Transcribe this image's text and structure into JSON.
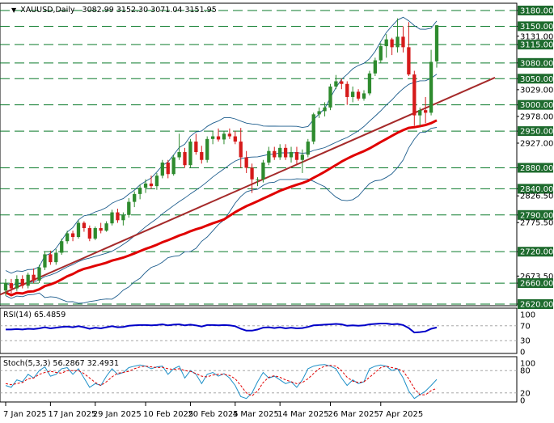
{
  "chart_data": [
    {
      "type": "candlestick",
      "symbol": "XAUUSD,Daily",
      "ohlc_header": "3082.99 3152.30 3071.04 3151.95",
      "header_arrow": "▼",
      "price_axis_ticks": [
        "3180.00",
        "3150.00",
        "3131.00",
        "3115.00",
        "3080.00",
        "3050.00",
        "3029.00",
        "3000.00",
        "2978.00",
        "2950.00",
        "2927.00",
        "2880.00",
        "2840.00",
        "2826.50",
        "2790.00",
        "2775.50",
        "2720.00",
        "2673.50",
        "2660.00",
        "2620.00"
      ],
      "highlighted_levels": [
        "3180.00",
        "3150.00",
        "3115.00",
        "3080.00",
        "3050.00",
        "3000.00",
        "2950.00",
        "2880.00",
        "2840.00",
        "2790.00",
        "2720.00",
        "2660.00",
        "2620.00"
      ],
      "ylim": [
        2620,
        3180
      ],
      "x_tick_labels": [
        "7 Jan 2025",
        "17 Jan 2025",
        "29 Jan 2025",
        "10 Feb 2025",
        "20 Feb 2025",
        "4 Mar 2025",
        "14 Mar 2025",
        "26 Mar 2025",
        "7 Apr 2025"
      ],
      "candles": [
        {
          "o": 2646,
          "h": 2668,
          "l": 2636,
          "c": 2660
        },
        {
          "o": 2660,
          "h": 2668,
          "l": 2640,
          "c": 2650
        },
        {
          "o": 2650,
          "h": 2675,
          "l": 2645,
          "c": 2668
        },
        {
          "o": 2668,
          "h": 2675,
          "l": 2650,
          "c": 2655
        },
        {
          "o": 2655,
          "h": 2680,
          "l": 2650,
          "c": 2676
        },
        {
          "o": 2676,
          "h": 2688,
          "l": 2660,
          "c": 2665
        },
        {
          "o": 2665,
          "h": 2695,
          "l": 2660,
          "c": 2690
        },
        {
          "o": 2690,
          "h": 2720,
          "l": 2685,
          "c": 2715
        },
        {
          "o": 2715,
          "h": 2722,
          "l": 2695,
          "c": 2700
        },
        {
          "o": 2700,
          "h": 2725,
          "l": 2695,
          "c": 2718
        },
        {
          "o": 2718,
          "h": 2745,
          "l": 2714,
          "c": 2740
        },
        {
          "o": 2740,
          "h": 2760,
          "l": 2735,
          "c": 2755
        },
        {
          "o": 2755,
          "h": 2760,
          "l": 2740,
          "c": 2748
        },
        {
          "o": 2748,
          "h": 2780,
          "l": 2745,
          "c": 2775
        },
        {
          "o": 2775,
          "h": 2778,
          "l": 2758,
          "c": 2765
        },
        {
          "o": 2765,
          "h": 2770,
          "l": 2740,
          "c": 2745
        },
        {
          "o": 2745,
          "h": 2768,
          "l": 2742,
          "c": 2765
        },
        {
          "o": 2765,
          "h": 2775,
          "l": 2755,
          "c": 2760
        },
        {
          "o": 2760,
          "h": 2778,
          "l": 2758,
          "c": 2774
        },
        {
          "o": 2774,
          "h": 2800,
          "l": 2770,
          "c": 2795
        },
        {
          "o": 2795,
          "h": 2802,
          "l": 2775,
          "c": 2780
        },
        {
          "o": 2780,
          "h": 2795,
          "l": 2770,
          "c": 2790
        },
        {
          "o": 2790,
          "h": 2822,
          "l": 2785,
          "c": 2815
        },
        {
          "o": 2815,
          "h": 2835,
          "l": 2805,
          "c": 2830
        },
        {
          "o": 2830,
          "h": 2848,
          "l": 2820,
          "c": 2842
        },
        {
          "o": 2842,
          "h": 2858,
          "l": 2832,
          "c": 2850
        },
        {
          "o": 2850,
          "h": 2865,
          "l": 2840,
          "c": 2845
        },
        {
          "o": 2845,
          "h": 2870,
          "l": 2838,
          "c": 2865
        },
        {
          "o": 2865,
          "h": 2895,
          "l": 2860,
          "c": 2890
        },
        {
          "o": 2890,
          "h": 2895,
          "l": 2860,
          "c": 2868
        },
        {
          "o": 2868,
          "h": 2905,
          "l": 2865,
          "c": 2900
        },
        {
          "o": 2900,
          "h": 2945,
          "l": 2895,
          "c": 2910
        },
        {
          "o": 2910,
          "h": 2918,
          "l": 2880,
          "c": 2885
        },
        {
          "o": 2885,
          "h": 2935,
          "l": 2880,
          "c": 2930
        },
        {
          "o": 2930,
          "h": 2945,
          "l": 2905,
          "c": 2910
        },
        {
          "o": 2910,
          "h": 2922,
          "l": 2888,
          "c": 2895
        },
        {
          "o": 2895,
          "h": 2940,
          "l": 2890,
          "c": 2935
        },
        {
          "o": 2935,
          "h": 2950,
          "l": 2925,
          "c": 2940
        },
        {
          "o": 2940,
          "h": 2955,
          "l": 2930,
          "c": 2934
        },
        {
          "o": 2934,
          "h": 2950,
          "l": 2925,
          "c": 2945
        },
        {
          "o": 2945,
          "h": 2955,
          "l": 2935,
          "c": 2940
        },
        {
          "o": 2940,
          "h": 2950,
          "l": 2925,
          "c": 2930
        },
        {
          "o": 2930,
          "h": 2956,
          "l": 2880,
          "c": 2900
        },
        {
          "o": 2900,
          "h": 2912,
          "l": 2870,
          "c": 2880
        },
        {
          "o": 2880,
          "h": 2888,
          "l": 2832,
          "c": 2858
        },
        {
          "o": 2858,
          "h": 2862,
          "l": 2845,
          "c": 2858
        },
        {
          "o": 2858,
          "h": 2895,
          "l": 2852,
          "c": 2890
        },
        {
          "o": 2890,
          "h": 2920,
          "l": 2885,
          "c": 2912
        },
        {
          "o": 2912,
          "h": 2920,
          "l": 2895,
          "c": 2900
        },
        {
          "o": 2900,
          "h": 2925,
          "l": 2895,
          "c": 2918
        },
        {
          "o": 2918,
          "h": 2925,
          "l": 2895,
          "c": 2900
        },
        {
          "o": 2900,
          "h": 2920,
          "l": 2890,
          "c": 2910
        },
        {
          "o": 2910,
          "h": 2920,
          "l": 2885,
          "c": 2895
        },
        {
          "o": 2895,
          "h": 2915,
          "l": 2870,
          "c": 2905
        },
        {
          "o": 2905,
          "h": 2935,
          "l": 2900,
          "c": 2930
        },
        {
          "o": 2930,
          "h": 2985,
          "l": 2925,
          "c": 2982
        },
        {
          "o": 2982,
          "h": 2995,
          "l": 2975,
          "c": 2988
        },
        {
          "o": 2988,
          "h": 3005,
          "l": 2978,
          "c": 2995
        },
        {
          "o": 2995,
          "h": 3040,
          "l": 2990,
          "c": 3035
        },
        {
          "o": 3035,
          "h": 3057,
          "l": 3030,
          "c": 3045
        },
        {
          "o": 3045,
          "h": 3050,
          "l": 3030,
          "c": 3040
        },
        {
          "o": 3040,
          "h": 3045,
          "l": 3000,
          "c": 3015
        },
        {
          "o": 3015,
          "h": 3035,
          "l": 3005,
          "c": 3025
        },
        {
          "o": 3025,
          "h": 3030,
          "l": 3008,
          "c": 3012
        },
        {
          "o": 3012,
          "h": 3028,
          "l": 3008,
          "c": 3022
        },
        {
          "o": 3022,
          "h": 3065,
          "l": 3018,
          "c": 3060
        },
        {
          "o": 3060,
          "h": 3090,
          "l": 3055,
          "c": 3085
        },
        {
          "o": 3085,
          "h": 3118,
          "l": 3080,
          "c": 3112
        },
        {
          "o": 3112,
          "h": 3135,
          "l": 3090,
          "c": 3125
        },
        {
          "o": 3125,
          "h": 3128,
          "l": 3095,
          "c": 3110
        },
        {
          "o": 3110,
          "h": 3165,
          "l": 3100,
          "c": 3130
        },
        {
          "o": 3130,
          "h": 3150,
          "l": 3100,
          "c": 3110
        },
        {
          "o": 3110,
          "h": 3158,
          "l": 3055,
          "c": 3058
        },
        {
          "o": 3058,
          "h": 3065,
          "l": 2960,
          "c": 2980
        },
        {
          "o": 2980,
          "h": 2995,
          "l": 2960,
          "c": 2990
        },
        {
          "o": 2990,
          "h": 3015,
          "l": 2965,
          "c": 2985
        },
        {
          "o": 2985,
          "h": 3105,
          "l": 2980,
          "c": 3082
        },
        {
          "o": 3082.99,
          "h": 3152.3,
          "l": 3071.04,
          "c": 3151.95
        }
      ],
      "series_overlays": [
        "upper Bollinger band",
        "middle Bollinger band",
        "lower Bollinger band",
        "red moving average",
        "trend line"
      ],
      "colors": {
        "bull": "#2e8b2e",
        "bear": "#d51a1a",
        "level_line": "#0a7a2a",
        "label_bg": "#1e6b2e",
        "band": "#1c5c8c",
        "ma": "#e00000",
        "trend": "#a52a2a"
      }
    },
    {
      "type": "line",
      "indicator": "RSI",
      "label": "RSI(14) 65.4859",
      "ylim": [
        0,
        100
      ],
      "y_ticks": [
        "100",
        "70",
        "30",
        "0"
      ],
      "values": [
        60,
        60,
        61,
        60,
        62,
        61,
        63,
        66,
        63,
        65,
        67,
        68,
        66,
        69,
        66,
        62,
        65,
        63,
        66,
        69,
        66,
        67,
        70,
        71,
        72,
        72,
        71,
        72,
        74,
        71,
        73,
        74,
        71,
        73,
        71,
        68,
        72,
        72,
        71,
        72,
        71,
        69,
        62,
        57,
        57,
        60,
        65,
        66,
        64,
        66,
        63,
        65,
        63,
        64,
        67,
        71,
        72,
        73,
        74,
        75,
        74,
        70,
        71,
        70,
        71,
        74,
        75,
        76,
        76,
        74,
        75,
        72,
        64,
        52,
        53,
        55,
        62,
        65.4859
      ],
      "color": "#0000c8"
    },
    {
      "type": "line",
      "indicator": "Stochastic",
      "label": "Stoch(5,3,3) 56.2867 32.4931",
      "ylim": [
        0,
        100
      ],
      "y_ticks": [
        "100",
        "80",
        "20",
        "0"
      ],
      "series": [
        {
          "name": "%K",
          "values": [
            40,
            35,
            55,
            50,
            70,
            60,
            80,
            90,
            65,
            70,
            85,
            88,
            70,
            85,
            60,
            35,
            45,
            40,
            65,
            85,
            70,
            75,
            88,
            92,
            95,
            92,
            85,
            90,
            92,
            70,
            85,
            92,
            60,
            80,
            70,
            45,
            70,
            75,
            65,
            72,
            60,
            40,
            10,
            5,
            20,
            50,
            75,
            60,
            65,
            55,
            45,
            50,
            35,
            55,
            85,
            92,
            95,
            96,
            92,
            85,
            60,
            40,
            55,
            45,
            50,
            85,
            92,
            95,
            92,
            80,
            85,
            60,
            25,
            5,
            15,
            25,
            40,
            56.2867
          ],
          "color": "#1e90c8"
        },
        {
          "name": "%D",
          "values": [
            45,
            42,
            45,
            48,
            58,
            60,
            70,
            75,
            78,
            75,
            73,
            80,
            80,
            80,
            72,
            60,
            48,
            40,
            50,
            63,
            73,
            75,
            78,
            85,
            90,
            92,
            90,
            88,
            89,
            85,
            83,
            85,
            80,
            78,
            72,
            65,
            63,
            68,
            70,
            70,
            67,
            58,
            40,
            20,
            12,
            25,
            48,
            62,
            66,
            62,
            55,
            50,
            45,
            48,
            58,
            72,
            85,
            92,
            94,
            92,
            80,
            62,
            52,
            48,
            50,
            62,
            75,
            88,
            92,
            88,
            85,
            78,
            58,
            32,
            15,
            15,
            26,
            32.4931
          ],
          "color": "#e00000"
        }
      ],
      "levels": [
        80,
        20
      ]
    }
  ]
}
